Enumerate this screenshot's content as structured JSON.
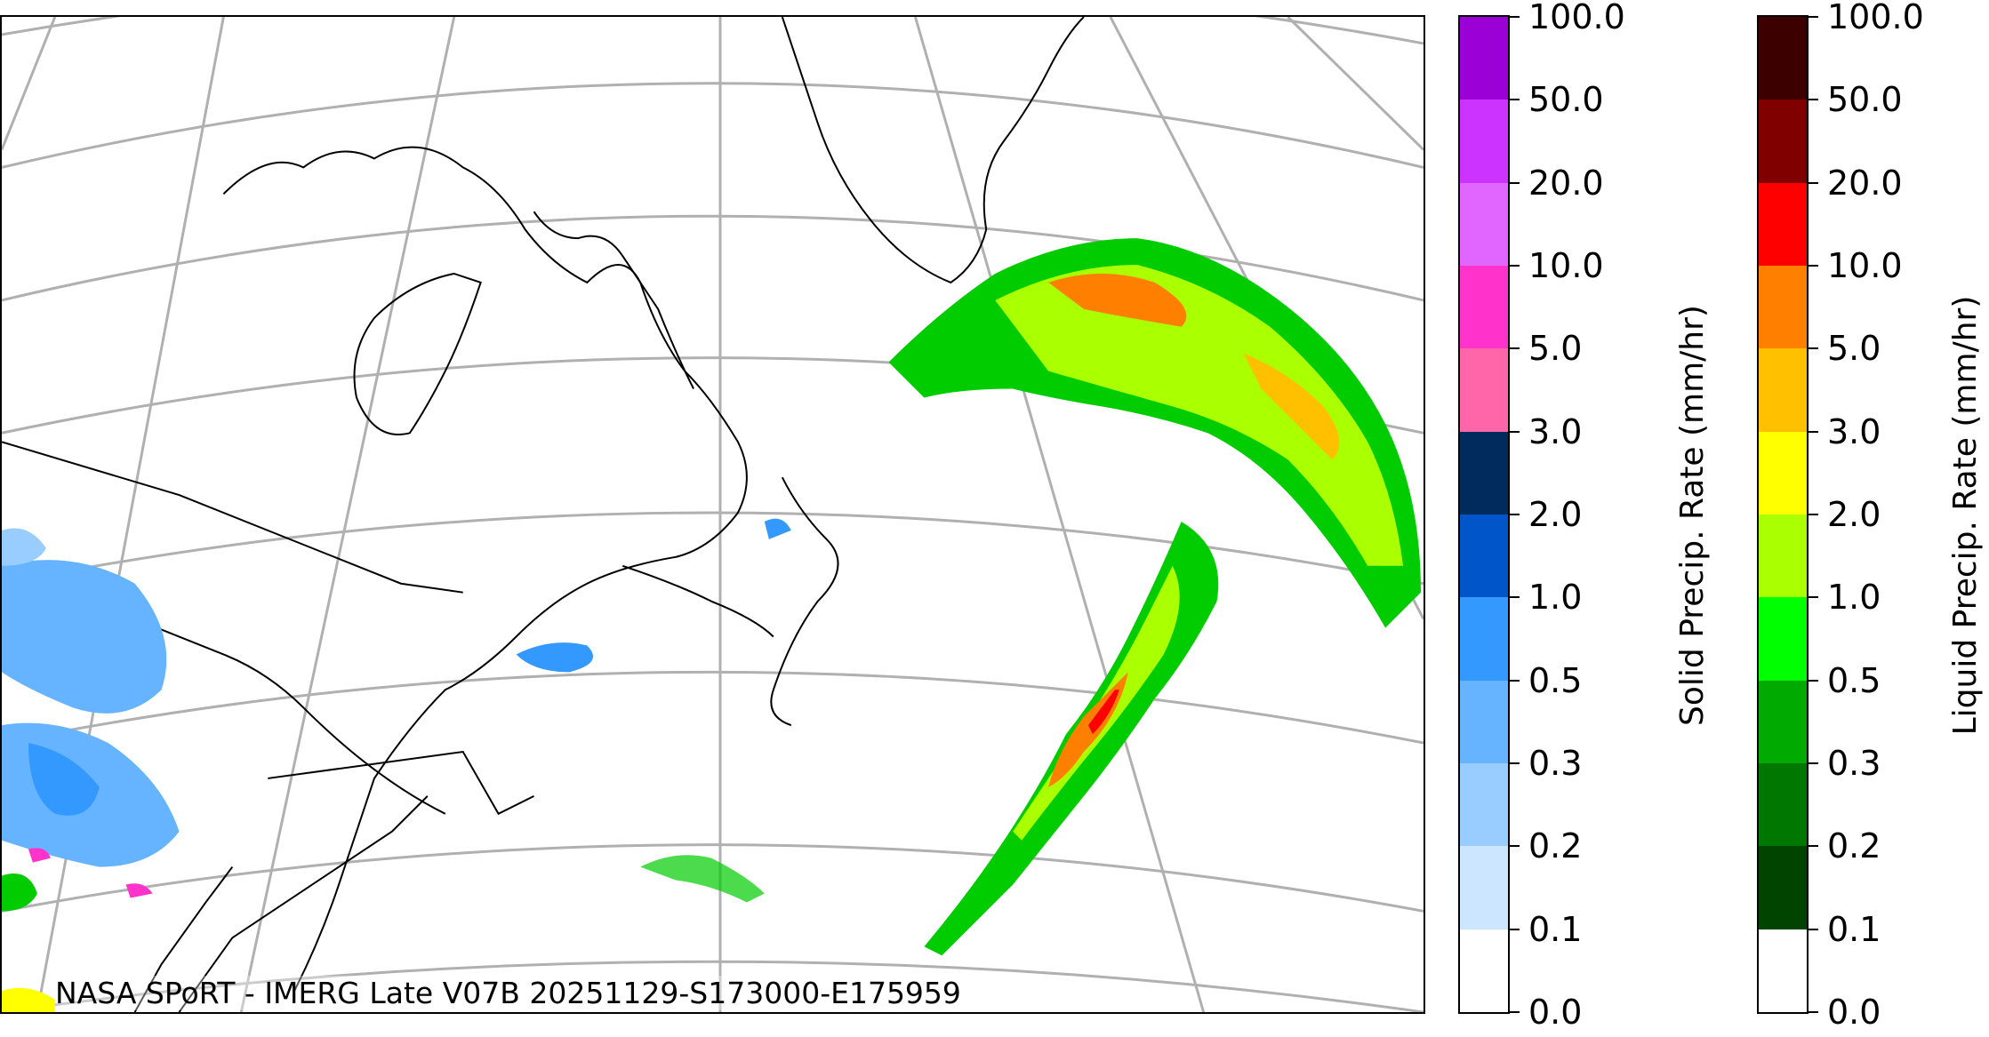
{
  "credit": "NASA SPoRT - IMERG Late V07B 20251129-S173000-E175959",
  "solid_colorbar": {
    "label": "Solid Precip. Rate (mm/hr)",
    "ticks": [
      "100.0",
      "50.0",
      "20.0",
      "10.0",
      "5.0",
      "3.0",
      "2.0",
      "1.0",
      "0.5",
      "0.3",
      "0.2",
      "0.1",
      "0.0"
    ],
    "colors": [
      "#9b00d6",
      "#cc33ff",
      "#e066ff",
      "#ff33cc",
      "#ff66aa",
      "#002b5c",
      "#0055c8",
      "#3399ff",
      "#66b3ff",
      "#99ccff",
      "#cce6ff",
      "#ffffff"
    ]
  },
  "liquid_colorbar": {
    "label": "Liquid Precip. Rate (mm/hr)",
    "ticks": [
      "100.0",
      "50.0",
      "20.0",
      "10.0",
      "5.0",
      "3.0",
      "2.0",
      "1.0",
      "0.5",
      "0.3",
      "0.2",
      "0.1",
      "0.0"
    ],
    "colors": [
      "#3d0000",
      "#800000",
      "#ff0000",
      "#ff7f00",
      "#ffc000",
      "#ffff00",
      "#aaff00",
      "#00ff00",
      "#00aa00",
      "#007700",
      "#004400",
      "#ffffff"
    ]
  },
  "map_colors": {
    "graticule": "#b0b0b0",
    "coastline": "#000000",
    "liquid_light": "#00cc00",
    "liquid_mid": "#aaff00",
    "liquid_heavy": "#ff7f00",
    "liquid_core": "#ff0000",
    "solid_light": "#66b3ff",
    "solid_mid": "#3399ff",
    "solid_heavy": "#ff33cc"
  }
}
